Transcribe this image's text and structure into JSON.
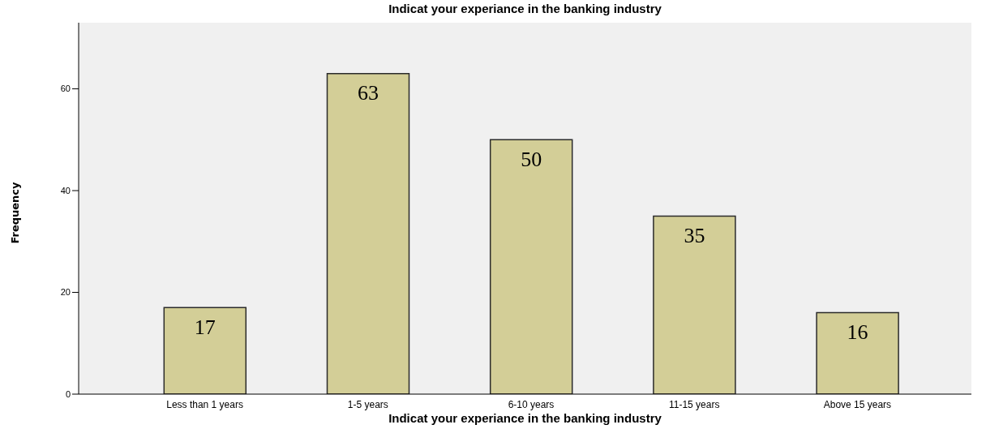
{
  "chart_data": {
    "type": "bar",
    "title": "Indicat your experiance in the banking industry",
    "xlabel": "Indicat your experiance in the banking industry",
    "ylabel": "Frequency",
    "categories": [
      "Less than 1 years",
      "1-5 years",
      "6-10 years",
      "11-15 years",
      "Above 15 years"
    ],
    "values": [
      17,
      63,
      50,
      35,
      16
    ],
    "color": "#d3ce97",
    "ylim": [
      0,
      73
    ],
    "yticks": [
      0,
      20,
      40,
      60
    ],
    "data_labels": true
  }
}
